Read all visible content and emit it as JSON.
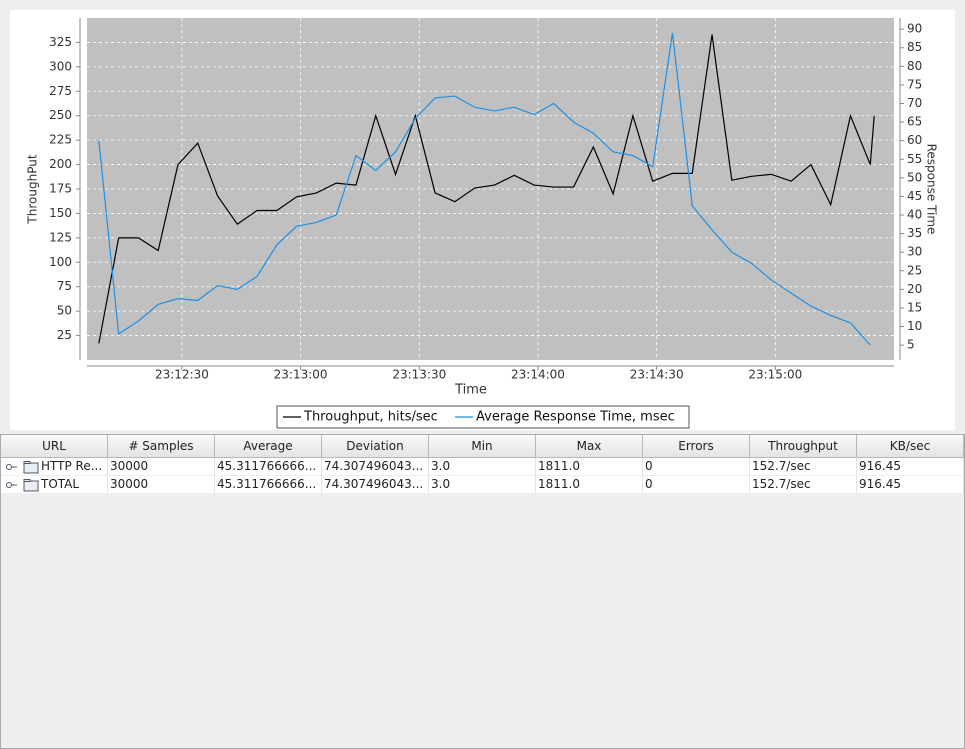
{
  "chart_data": {
    "type": "line",
    "x_label": "Time",
    "y_label": "ThroughPut",
    "y2_label": "Response Time",
    "x": [
      "23:12:09",
      "23:12:14",
      "23:12:19",
      "23:12:24",
      "23:12:29",
      "23:12:34",
      "23:12:39",
      "23:12:44",
      "23:12:49",
      "23:12:54",
      "23:12:59",
      "23:13:04",
      "23:13:09",
      "23:13:14",
      "23:13:19",
      "23:13:24",
      "23:13:29",
      "23:13:34",
      "23:13:39",
      "23:13:44",
      "23:13:49",
      "23:13:54",
      "23:13:59",
      "23:14:04",
      "23:14:09",
      "23:14:14",
      "23:14:19",
      "23:14:24",
      "23:14:29",
      "23:14:34",
      "23:14:39",
      "23:14:44",
      "23:14:49",
      "23:14:54",
      "23:14:59",
      "23:15:04",
      "23:15:09",
      "23:15:14",
      "23:15:19",
      "23:15:24",
      "23:15:25"
    ],
    "series": [
      {
        "name": "Throughput, hits/sec",
        "color": "#000000",
        "values": [
          17,
          125,
          125,
          112,
          200,
          222,
          168,
          139,
          153,
          153,
          167,
          171,
          181,
          179,
          250,
          190,
          250,
          171,
          162,
          176,
          179,
          189,
          179,
          177,
          177,
          218,
          170,
          250,
          183,
          191,
          191,
          333,
          184,
          188,
          190,
          183,
          200,
          159,
          250,
          200,
          250
        ]
      },
      {
        "name": "Average Response Time, msec",
        "color": "#1e90e6",
        "axis": "y2",
        "values": [
          60,
          8,
          11.5,
          16,
          17.5,
          17,
          21,
          20,
          23.5,
          32,
          37,
          38,
          40,
          56,
          52,
          57,
          66,
          71.5,
          72,
          69,
          68,
          69,
          67,
          70,
          65,
          62,
          57,
          56,
          53,
          89,
          42.5,
          36,
          30,
          27,
          22.5,
          19,
          15.5,
          13,
          11,
          5,
          null
        ]
      }
    ],
    "xlim": [
      "23:12:06",
      "23:15:30"
    ],
    "xticks": [
      "23:12:30",
      "23:13:00",
      "23:13:30",
      "23:14:00",
      "23:14:30",
      "23:15:00"
    ],
    "ylim": [
      0,
      350
    ],
    "yticks": [
      25,
      50,
      75,
      100,
      125,
      150,
      175,
      200,
      225,
      250,
      275,
      300,
      325
    ],
    "y2lim": [
      1,
      93
    ],
    "y2ticks": [
      5,
      10,
      15,
      20,
      25,
      30,
      35,
      40,
      45,
      50,
      55,
      60,
      65,
      70,
      75,
      80,
      85,
      90
    ],
    "grid": true,
    "legend": "bottom"
  },
  "table": {
    "columns": [
      "URL",
      "# Samples",
      "Average",
      "Deviation",
      "Min",
      "Max",
      "Errors",
      "Throughput",
      "KB/sec"
    ],
    "rows": [
      [
        "HTTP Re...",
        "30000",
        "45.311766666...",
        "74.307496043...",
        "3.0",
        "1811.0",
        "0",
        "152.7/sec",
        "916.45"
      ],
      [
        "TOTAL",
        "30000",
        "45.311766666...",
        "74.307496043...",
        "3.0",
        "1811.0",
        "0",
        "152.7/sec",
        "916.45"
      ]
    ]
  }
}
